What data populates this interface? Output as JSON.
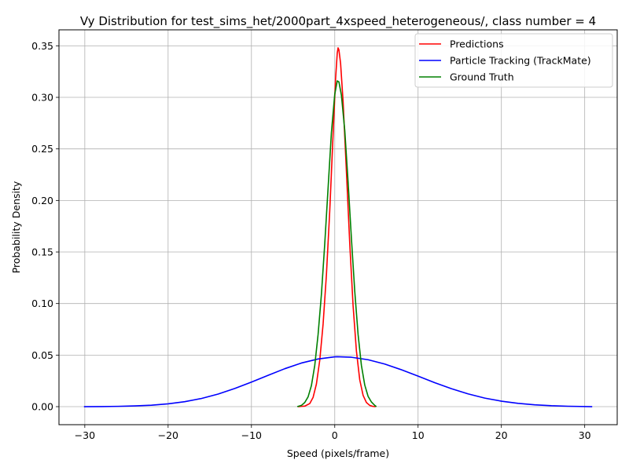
{
  "chart_data": {
    "type": "line",
    "title": "Vy Distribution for test_sims_het/2000part_4xspeed_heterogeneous/, class number = 4",
    "xlabel": "Speed (pixels/frame)",
    "ylabel": "Probability Density",
    "xlim": [
      -33.1,
      33.9
    ],
    "ylim": [
      -0.0175,
      0.3655
    ],
    "xticks": [
      -30,
      -20,
      -10,
      0,
      10,
      20,
      30
    ],
    "xtick_labels": [
      "−30",
      "−20",
      "−10",
      "0",
      "10",
      "20",
      "30"
    ],
    "yticks": [
      0.0,
      0.05,
      0.1,
      0.15,
      0.2,
      0.25,
      0.3,
      0.35
    ],
    "ytick_labels": [
      "0.00",
      "0.05",
      "0.10",
      "0.15",
      "0.20",
      "0.25",
      "0.30",
      "0.35"
    ],
    "grid": true,
    "legend_position": "top-right",
    "series": [
      {
        "name": "Predictions",
        "color": "#ff0000",
        "points": [
          [
            -4.4,
            0.0
          ],
          [
            -3.6,
            0.0005
          ],
          [
            -3.0,
            0.003
          ],
          [
            -2.6,
            0.009
          ],
          [
            -2.2,
            0.022
          ],
          [
            -1.8,
            0.045
          ],
          [
            -1.4,
            0.08
          ],
          [
            -1.0,
            0.128
          ],
          [
            -0.6,
            0.19
          ],
          [
            -0.2,
            0.264
          ],
          [
            0.1,
            0.318
          ],
          [
            0.3,
            0.343
          ],
          [
            0.4,
            0.348
          ],
          [
            0.5,
            0.346
          ],
          [
            0.7,
            0.333
          ],
          [
            1.0,
            0.296
          ],
          [
            1.4,
            0.228
          ],
          [
            1.8,
            0.158
          ],
          [
            2.2,
            0.098
          ],
          [
            2.6,
            0.054
          ],
          [
            3.0,
            0.026
          ],
          [
            3.4,
            0.011
          ],
          [
            3.8,
            0.004
          ],
          [
            4.2,
            0.0012
          ],
          [
            4.6,
            0.0002
          ],
          [
            4.9,
            0.0
          ]
        ]
      },
      {
        "name": "Particle Tracking (TrackMate)",
        "color": "#0000ff",
        "points": [
          [
            -30.1,
            0.0
          ],
          [
            -28.0,
            0.0001
          ],
          [
            -26.0,
            0.0003
          ],
          [
            -24.0,
            0.0007
          ],
          [
            -22.0,
            0.0014
          ],
          [
            -20.0,
            0.0027
          ],
          [
            -18.0,
            0.0048
          ],
          [
            -16.0,
            0.0079
          ],
          [
            -14.0,
            0.0122
          ],
          [
            -12.0,
            0.0176
          ],
          [
            -10.0,
            0.0238
          ],
          [
            -8.0,
            0.0304
          ],
          [
            -6.0,
            0.0368
          ],
          [
            -4.0,
            0.0423
          ],
          [
            -2.0,
            0.0462
          ],
          [
            0.0,
            0.0483
          ],
          [
            0.3,
            0.0484
          ],
          [
            2.0,
            0.0479
          ],
          [
            4.0,
            0.0455
          ],
          [
            6.0,
            0.0413
          ],
          [
            8.0,
            0.0358
          ],
          [
            10.0,
            0.0296
          ],
          [
            12.0,
            0.0232
          ],
          [
            14.0,
            0.0174
          ],
          [
            16.0,
            0.0124
          ],
          [
            18.0,
            0.0083
          ],
          [
            20.0,
            0.0053
          ],
          [
            22.0,
            0.0032
          ],
          [
            24.0,
            0.0018
          ],
          [
            26.0,
            0.0009
          ],
          [
            28.0,
            0.0004
          ],
          [
            30.9,
            0.0
          ]
        ]
      },
      {
        "name": "Ground Truth",
        "color": "#008000",
        "points": [
          [
            -4.5,
            0.0
          ],
          [
            -4.0,
            0.0012
          ],
          [
            -3.6,
            0.004
          ],
          [
            -3.2,
            0.0095
          ],
          [
            -2.8,
            0.0205
          ],
          [
            -2.4,
            0.04
          ],
          [
            -2.0,
            0.07
          ],
          [
            -1.6,
            0.109
          ],
          [
            -1.2,
            0.158
          ],
          [
            -0.8,
            0.212
          ],
          [
            -0.4,
            0.266
          ],
          [
            0.0,
            0.303
          ],
          [
            0.3,
            0.316
          ],
          [
            0.5,
            0.315
          ],
          [
            0.8,
            0.302
          ],
          [
            1.2,
            0.268
          ],
          [
            1.6,
            0.218
          ],
          [
            2.0,
            0.163
          ],
          [
            2.4,
            0.112
          ],
          [
            2.8,
            0.07
          ],
          [
            3.2,
            0.04
          ],
          [
            3.6,
            0.021
          ],
          [
            4.0,
            0.01
          ],
          [
            4.4,
            0.0045
          ],
          [
            4.8,
            0.0012
          ],
          [
            5.0,
            0.0
          ]
        ]
      }
    ]
  }
}
